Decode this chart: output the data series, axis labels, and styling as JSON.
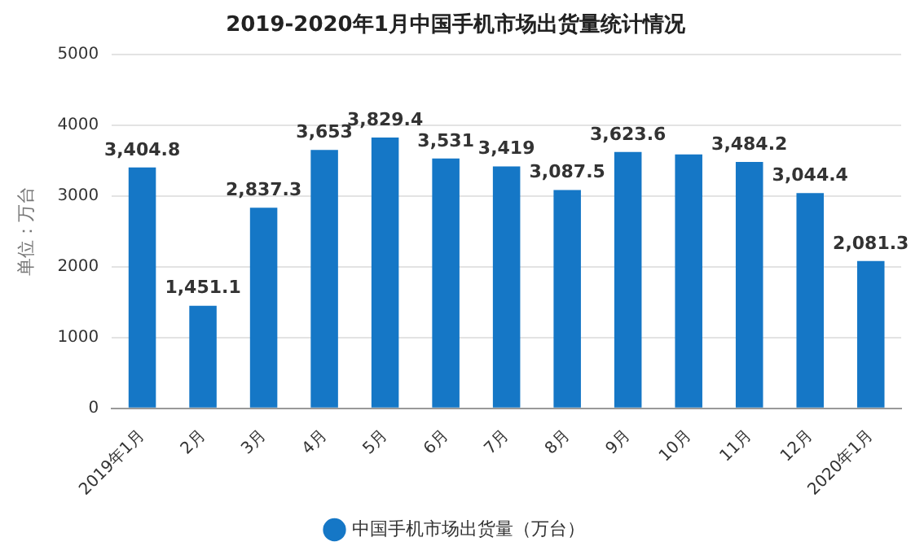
{
  "chart_data": {
    "type": "bar",
    "title": "2019-2020年1月中国手机市场出货量统计情况",
    "ylabel": "单位：万台",
    "categories": [
      "2019年1月",
      "2月",
      "3月",
      "4月",
      "5月",
      "6月",
      "7月",
      "8月",
      "9月",
      "10月",
      "11月",
      "12月",
      "2020年1月"
    ],
    "series": [
      {
        "name": "中国手机市场出货量（万台）",
        "color": "#1577c6",
        "values": [
          3404.8,
          1451.1,
          2837.3,
          3653,
          3829.4,
          3531,
          3419,
          3087.5,
          3623.6,
          3590,
          3484.2,
          3044.4,
          2081.3
        ],
        "value_labels": [
          "3,404.8",
          "1,451.1",
          "2,837.3",
          "3,653",
          "3,829.4",
          "3,531",
          "3,419",
          "3,087.5",
          "3,623.6",
          null,
          "3,484.2",
          "3,044.4",
          "2,081.3"
        ]
      }
    ],
    "ylim": [
      0,
      5000
    ],
    "yticks": [
      0,
      1000,
      2000,
      3000,
      4000,
      5000
    ],
    "grid": "y",
    "legend": "bottom"
  }
}
